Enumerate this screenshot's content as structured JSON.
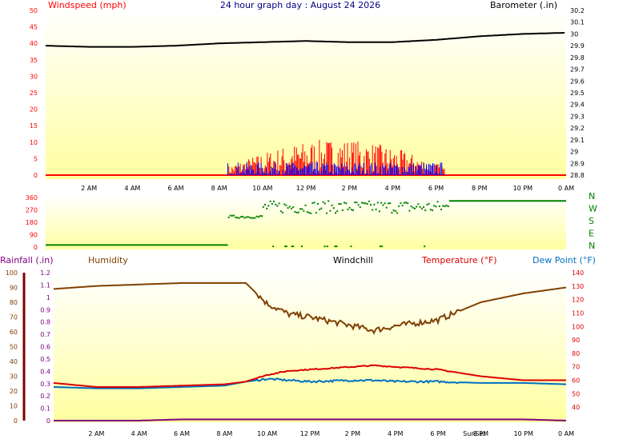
{
  "header": {
    "title": "24 hour graph day : August 24 2026",
    "windspeed_label": "Windspeed (mph)",
    "barometer_label": "Barometer (.in)"
  },
  "time_ticks": [
    "2 AM",
    "4 AM",
    "6 AM",
    "8 AM",
    "10 AM",
    "12 PM",
    "2 PM",
    "4 PM",
    "6 PM",
    "8 PM",
    "10 PM",
    "0 AM"
  ],
  "bottom_labels": {
    "rainfall": "Rainfall (.in)",
    "humidity": "Humidity",
    "windchill": "Windchill",
    "temperature": "Temperature (°F)",
    "dewpoint": "Dew Point (°F)",
    "sunrise_sunset": "SunSet"
  },
  "colors": {
    "windspeed": "#ff0000",
    "gust_blue": "#0000ff",
    "barometer": "#000000",
    "direction": "#008000",
    "humidity": "#804000",
    "temperature": "#dd0000",
    "dewpoint": "#0070c0",
    "rainfall": "#800080",
    "axis_text": "#ff0000",
    "bg_top": "#ffffff",
    "bg_bottom": "#ffffa0"
  },
  "chart_data": [
    {
      "type": "line",
      "name": "windspeed_barometer",
      "yaxis_left": {
        "label": "Windspeed (mph)",
        "ylim": [
          0,
          50
        ],
        "ticks": [
          "0",
          "5",
          "10",
          "15",
          "20",
          "25",
          "30",
          "35",
          "40",
          "45",
          "50"
        ]
      },
      "yaxis_right": {
        "label": "Barometer (.in)",
        "ylim": [
          28.8,
          30.2
        ],
        "ticks": [
          "28.8",
          "28.9",
          "29",
          "29.1",
          "29.2",
          "29.3",
          "29.4",
          "29.5",
          "29.6",
          "29.7",
          "29.8",
          "29.9",
          "30",
          "30.1",
          "30.2"
        ]
      },
      "x_hours": [
        0,
        2,
        4,
        6,
        8,
        10,
        12,
        14,
        16,
        18,
        20,
        22,
        24
      ],
      "barometer": [
        29.9,
        29.89,
        29.89,
        29.9,
        29.92,
        29.93,
        29.94,
        29.93,
        29.93,
        29.95,
        29.98,
        30.0,
        30.01
      ],
      "windspeed_active_hours": [
        8.4,
        18.4
      ],
      "windspeed_peak": 11,
      "gust_peak": 4
    },
    {
      "type": "scatter",
      "name": "wind_direction",
      "yaxis_left": {
        "ylim": [
          0,
          360
        ],
        "ticks": [
          "0",
          "90",
          "180",
          "270",
          "360"
        ]
      },
      "compass": [
        "N",
        "W",
        "S",
        "E",
        "N"
      ],
      "segments": [
        {
          "from_hour": 0,
          "to_hour": 8.4,
          "deg": 15
        },
        {
          "from_hour": 8.4,
          "to_hour": 10.0,
          "deg": 220
        },
        {
          "from_hour": 10.0,
          "to_hour": 18.6,
          "deg": 290
        },
        {
          "from_hour": 18.6,
          "to_hour": 24,
          "deg": 335
        }
      ]
    },
    {
      "type": "line",
      "name": "humidity_temperature",
      "yaxis_left_rain": {
        "label": "Rainfall (.in)",
        "ylim": [
          0,
          1.2
        ],
        "ticks": [
          "0",
          "0.1",
          "0.2",
          "0.3",
          "0.4",
          "0.5",
          "0.6",
          "0.7",
          "0.8",
          "0.9",
          "1",
          "1.1",
          "1.2"
        ]
      },
      "yaxis_left_humidity": {
        "label": "Humidity",
        "ylim": [
          0,
          100
        ],
        "ticks": [
          "0",
          "10",
          "20",
          "30",
          "40",
          "50",
          "60",
          "70",
          "80",
          "90",
          "100"
        ]
      },
      "yaxis_right": {
        "label": "Temperature (°F)",
        "ylim": [
          30,
          140
        ],
        "ticks": [
          "40",
          "50",
          "60",
          "70",
          "80",
          "90",
          "100",
          "110",
          "120",
          "130",
          "140"
        ]
      },
      "x_hours": [
        0,
        2,
        4,
        6,
        8,
        9,
        10,
        11,
        12,
        14,
        15,
        16,
        18,
        20,
        22,
        24
      ],
      "humidity": [
        89,
        91,
        92,
        93,
        93,
        93,
        79,
        72,
        70,
        64,
        61,
        64,
        68,
        80,
        86,
        90
      ],
      "temperature": [
        58,
        55,
        55,
        56,
        57,
        59,
        64,
        67,
        68,
        70,
        71,
        70,
        68,
        63,
        60,
        60
      ],
      "dewpoint": [
        55,
        54,
        54,
        55,
        56,
        59,
        61,
        60,
        59,
        60,
        60,
        59,
        59,
        58,
        58,
        57
      ],
      "rainfall": [
        0,
        0,
        0,
        0.01,
        0.01,
        0.01,
        0.01,
        0.01,
        0.01,
        0.01,
        0.01,
        0.01,
        0.01,
        0.01,
        0.01,
        0.0
      ]
    }
  ]
}
